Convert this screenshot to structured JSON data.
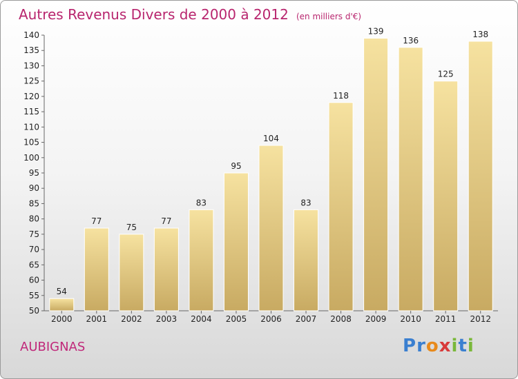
{
  "header": {
    "title": "Autres Revenus Divers de 2000 à 2012",
    "unit": "(en milliers d'€)"
  },
  "footer": {
    "town": "AUBIGNAS",
    "logo_letters": [
      "P",
      "r",
      "o",
      "x",
      "i",
      "t",
      "i"
    ]
  },
  "colors": {
    "title": "#b8256e",
    "bar_light": "#f6e2a0",
    "bar_dark": "#c8aa62",
    "logo": [
      "#3a7fd0",
      "#3a7fd0",
      "#e88a1c",
      "#d83a3a",
      "#7ab83a",
      "#3a7fd0",
      "#7ab83a"
    ]
  },
  "chart_data": {
    "type": "bar",
    "title": "Autres Revenus Divers de 2000 à 2012",
    "subtitle": "(en milliers d'€)",
    "categories": [
      "2000",
      "2001",
      "2002",
      "2003",
      "2004",
      "2005",
      "2006",
      "2007",
      "2008",
      "2009",
      "2010",
      "2011",
      "2012"
    ],
    "values": [
      54,
      77,
      75,
      77,
      83,
      95,
      104,
      83,
      118,
      139,
      136,
      125,
      138
    ],
    "ylim": [
      50,
      140
    ],
    "ytick_step": 5,
    "grid": false,
    "legend": "none"
  }
}
